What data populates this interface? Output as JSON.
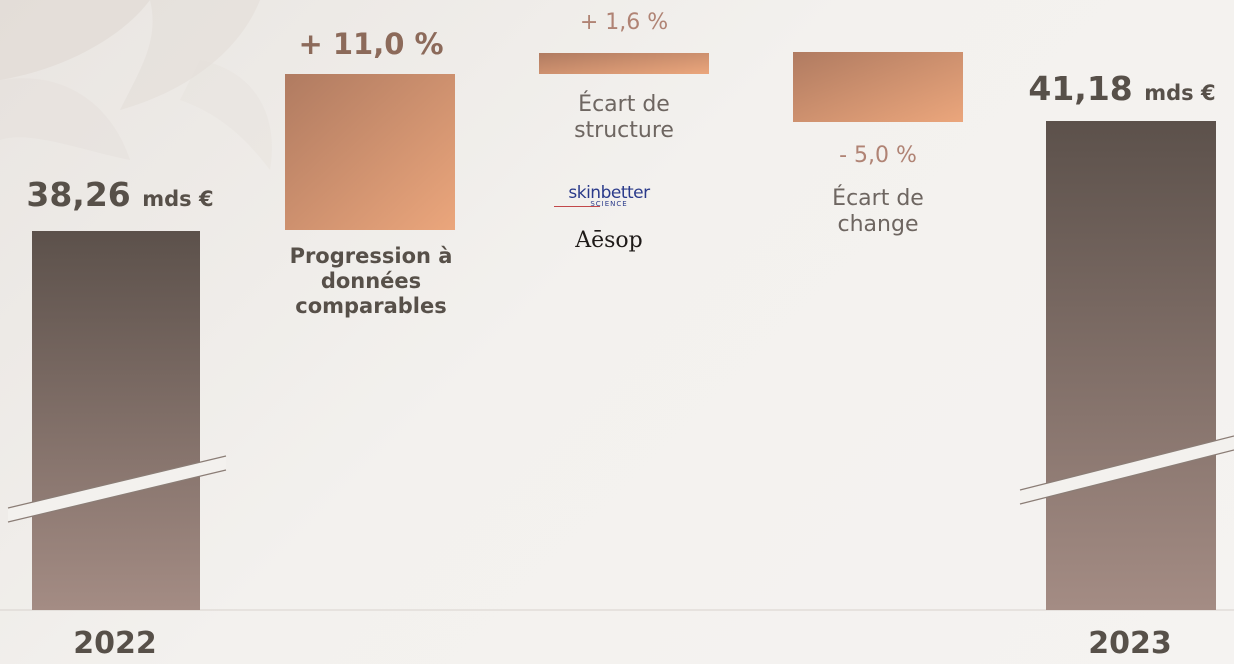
{
  "chart_data": {
    "type": "waterfall",
    "start": {
      "label": "2022",
      "value": 38.26,
      "value_text": "38,26",
      "unit": "mds €"
    },
    "end": {
      "label": "2023",
      "value": 41.18,
      "value_text": "41,18",
      "unit": "mds €"
    },
    "steps": [
      {
        "label_lines": [
          "Progression à",
          "données",
          "comparables"
        ],
        "value": 11.0,
        "value_text": "+ 11,0 %",
        "color": "#c48a6a"
      },
      {
        "label_lines": [
          "Écart de",
          "structure"
        ],
        "value": 1.6,
        "value_text": "+ 1,6 %",
        "color": "#c48a6a"
      },
      {
        "label_lines": [
          "Écart de",
          "change"
        ],
        "value": -5.0,
        "value_text": "- 5,0 %",
        "color": "#c48a6a"
      }
    ],
    "axis_break": true,
    "grid": false,
    "legend": "none"
  },
  "logos": {
    "skinbetter": "skinbetter",
    "skinbetter_sub": "SCIENCE",
    "aesop": "Aēsop"
  },
  "colors": {
    "total_bar_top": "#5c514b",
    "total_bar_bottom": "#a48c84",
    "step_bar_light": "#eba67c",
    "step_bar_dark": "#b07b61",
    "text_dark": "#575049"
  }
}
